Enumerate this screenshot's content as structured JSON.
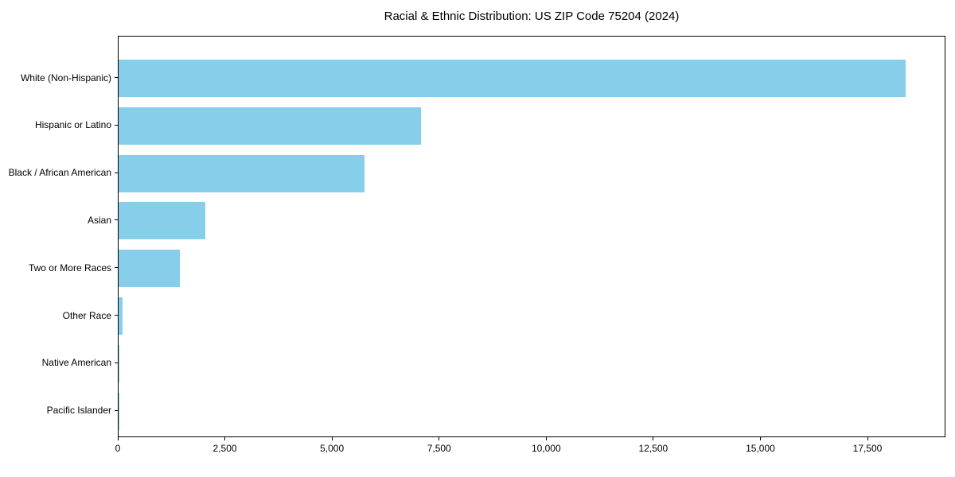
{
  "chart_data": {
    "type": "bar",
    "orientation": "horizontal",
    "title": "Racial & Ethnic Distribution: US ZIP Code 75204 (2024)",
    "categories": [
      "White (Non-Hispanic)",
      "Hispanic or Latino",
      "Black / African American",
      "Asian",
      "Two or More Races",
      "Other Race",
      "Native American",
      "Pacific Islander"
    ],
    "values": [
      18370,
      7060,
      5740,
      2020,
      1430,
      95,
      25,
      8
    ],
    "xlabel": "",
    "ylabel": "",
    "xlim": [
      0,
      19320
    ],
    "xticks": {
      "values": [
        0,
        2500,
        5000,
        7500,
        10000,
        12500,
        15000,
        17500
      ],
      "labels": [
        "0",
        "2,500",
        "5,000",
        "7,500",
        "10,000",
        "12,500",
        "15,000",
        "17,500"
      ]
    },
    "grid": false,
    "legend": "none",
    "bar_color": "#87CEEB",
    "axis_color": "#000000",
    "text_color": "#000000",
    "background_color": "#FFFFFF"
  }
}
